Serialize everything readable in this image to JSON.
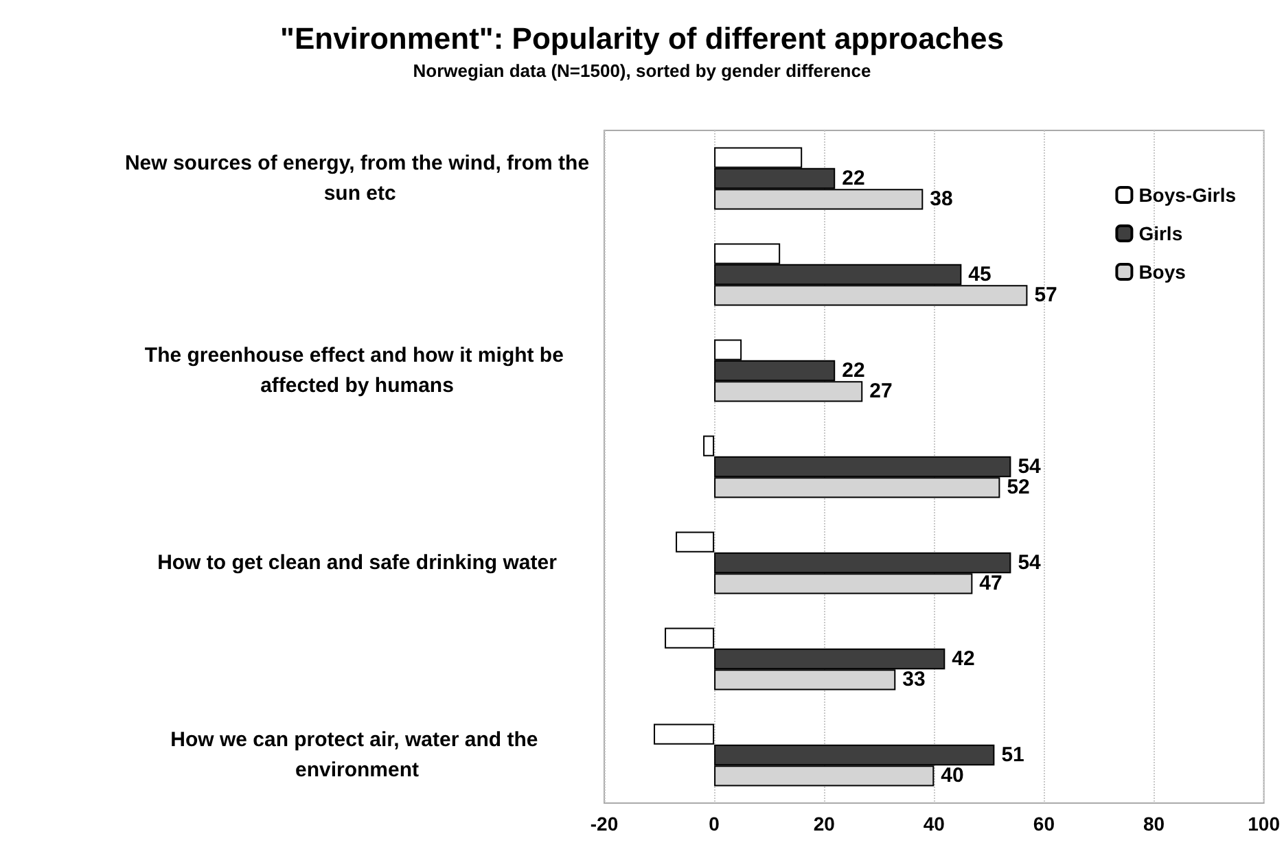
{
  "chart_data": {
    "type": "bar",
    "orientation": "horizontal",
    "title": "\"Environment\": Popularity of different approaches",
    "subtitle": "Norwegian data (N=1500), sorted by gender difference",
    "categories": [
      "New sources of energy, from the wind, from the sun etc",
      null,
      "The greenhouse effect and how it might be affected by humans",
      null,
      "How to get clean and safe drinking water",
      null,
      "How we can protect air, water and the environment"
    ],
    "series": [
      {
        "name": "Boys-Girls",
        "color": "#ffffff",
        "values": [
          16,
          12,
          5,
          -2,
          -7,
          -9,
          -11
        ]
      },
      {
        "name": "Girls",
        "color": "#3f3f3f",
        "values": [
          22,
          45,
          22,
          54,
          54,
          42,
          51
        ],
        "value_labels": [
          "22",
          "45",
          "22",
          "54",
          "54",
          "42",
          "51"
        ]
      },
      {
        "name": "Boys",
        "color": "#d4d4d4",
        "values": [
          38,
          57,
          27,
          52,
          47,
          33,
          40
        ],
        "value_labels": [
          "38",
          "57",
          "27",
          "52",
          "47",
          "33",
          "40"
        ]
      }
    ],
    "xlim": [
      -20,
      100
    ],
    "xticks": [
      -20,
      0,
      20,
      40,
      60,
      80,
      100
    ],
    "grid": "x",
    "legend": "top right"
  }
}
